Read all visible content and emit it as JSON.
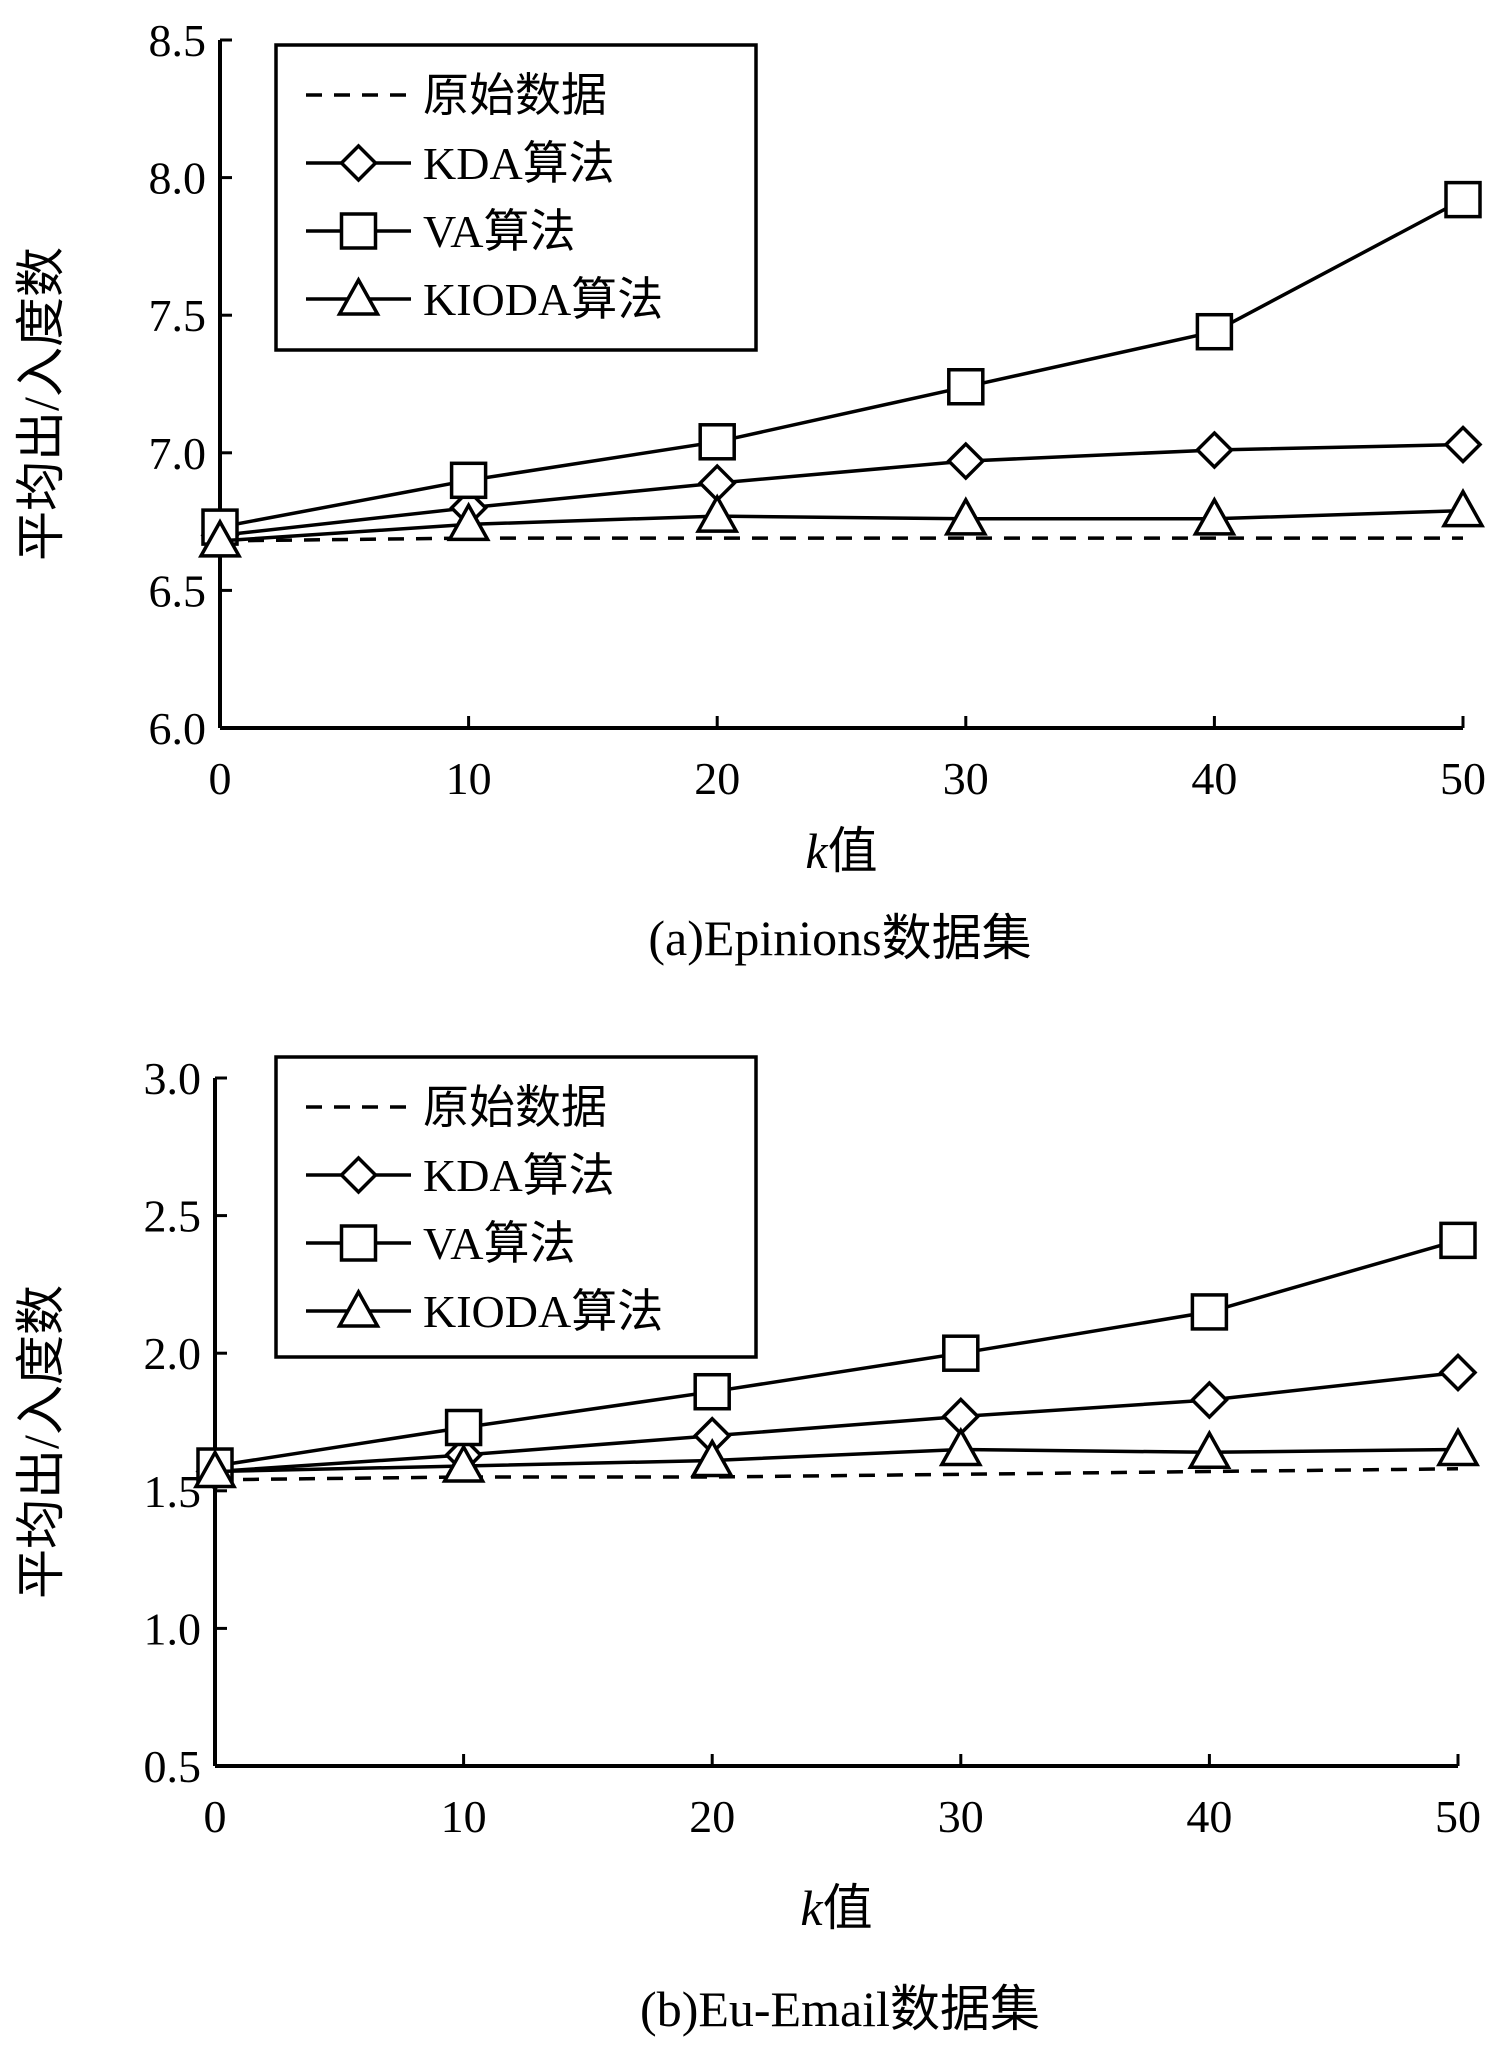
{
  "chart_data": [
    {
      "type": "line",
      "caption": "(a)Epinions数据集",
      "xlabel_italic": "k",
      "xlabel_rest": "值",
      "ylabel": "平均出/入度数",
      "xlim": [
        0,
        50
      ],
      "ylim": [
        6.0,
        8.5
      ],
      "x_ticks": [
        "0",
        "10",
        "20",
        "30",
        "40",
        "50"
      ],
      "y_ticks": [
        "6.0",
        "6.5",
        "7.0",
        "7.5",
        "8.0",
        "8.5"
      ],
      "grid": false,
      "legend_position": "top-left",
      "x": [
        0,
        10,
        20,
        30,
        40,
        50
      ],
      "series": [
        {
          "name": "原始数据",
          "marker": "none",
          "style": "dashed",
          "values": [
            6.68,
            6.69,
            6.69,
            6.69,
            6.69,
            6.69
          ]
        },
        {
          "name": "KDA算法",
          "marker": "diamond",
          "style": "solid",
          "values": [
            6.7,
            6.8,
            6.89,
            6.97,
            7.01,
            7.03
          ]
        },
        {
          "name": "VA算法",
          "marker": "square",
          "style": "solid",
          "values": [
            6.73,
            6.9,
            7.04,
            7.24,
            7.44,
            7.92
          ]
        },
        {
          "name": "KIODA算法",
          "marker": "triangle",
          "style": "solid",
          "values": [
            6.68,
            6.74,
            6.77,
            6.76,
            6.76,
            6.79
          ]
        }
      ]
    },
    {
      "type": "line",
      "caption": "(b)Eu-Email数据集",
      "xlabel_italic": "k",
      "xlabel_rest": "值",
      "ylabel": "平均出/入度数",
      "xlim": [
        0,
        50
      ],
      "ylim": [
        0.5,
        3.0
      ],
      "x_ticks": [
        "0",
        "10",
        "20",
        "30",
        "40",
        "50"
      ],
      "y_ticks": [
        "0.5",
        "1.0",
        "1.5",
        "2.0",
        "2.5",
        "3.0"
      ],
      "grid": false,
      "legend_position": "top-left",
      "x": [
        0,
        10,
        20,
        30,
        40,
        50
      ],
      "series": [
        {
          "name": "原始数据",
          "marker": "none",
          "style": "dashed",
          "values": [
            1.54,
            1.55,
            1.55,
            1.56,
            1.57,
            1.58
          ]
        },
        {
          "name": "KDA算法",
          "marker": "diamond",
          "style": "solid",
          "values": [
            1.57,
            1.63,
            1.7,
            1.77,
            1.83,
            1.93
          ]
        },
        {
          "name": "VA算法",
          "marker": "square",
          "style": "solid",
          "values": [
            1.59,
            1.73,
            1.86,
            2.0,
            2.15,
            2.41
          ]
        },
        {
          "name": "KIODA算法",
          "marker": "triangle",
          "style": "solid",
          "values": [
            1.57,
            1.59,
            1.61,
            1.65,
            1.64,
            1.65
          ]
        }
      ]
    }
  ]
}
